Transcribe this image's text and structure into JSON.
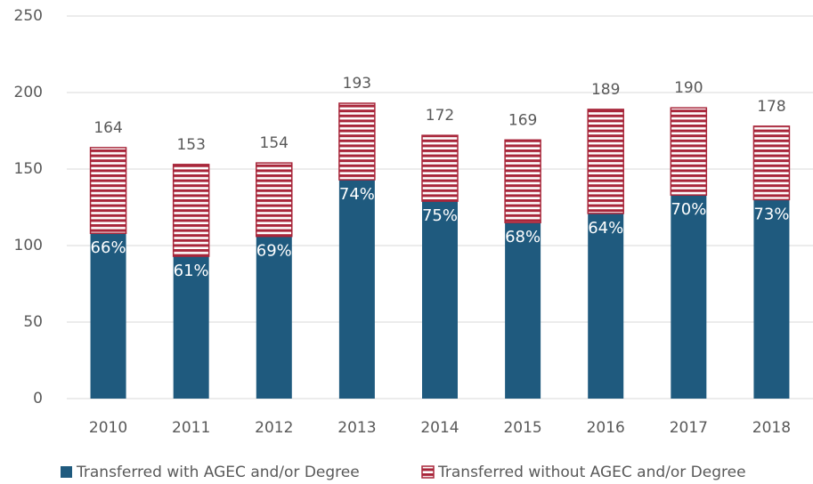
{
  "chart_data": {
    "type": "stacked-bar",
    "categories": [
      "2010",
      "2011",
      "2012",
      "2013",
      "2014",
      "2015",
      "2016",
      "2017",
      "2018"
    ],
    "series": [
      {
        "name": "Transferred with AGEC and/or Degree",
        "color": "#1f5a7e",
        "pattern": "solid",
        "values": [
          108,
          93,
          106,
          143,
          129,
          115,
          121,
          133,
          130
        ],
        "value_labels": [
          "66%",
          "61%",
          "69%",
          "74%",
          "75%",
          "68%",
          "64%",
          "70%",
          "73%"
        ]
      },
      {
        "name": "Transferred without AGEC and/or Degree",
        "color": "#a8263a",
        "pattern": "horizontal-stripes",
        "values": [
          56,
          60,
          48,
          50,
          43,
          54,
          68,
          57,
          48
        ]
      }
    ],
    "totals": [
      164,
      153,
      154,
      193,
      172,
      169,
      189,
      190,
      178
    ],
    "ylim": [
      0,
      250
    ],
    "yticks": [
      0,
      50,
      100,
      150,
      200,
      250
    ],
    "grid": true,
    "legend": "bottom"
  }
}
